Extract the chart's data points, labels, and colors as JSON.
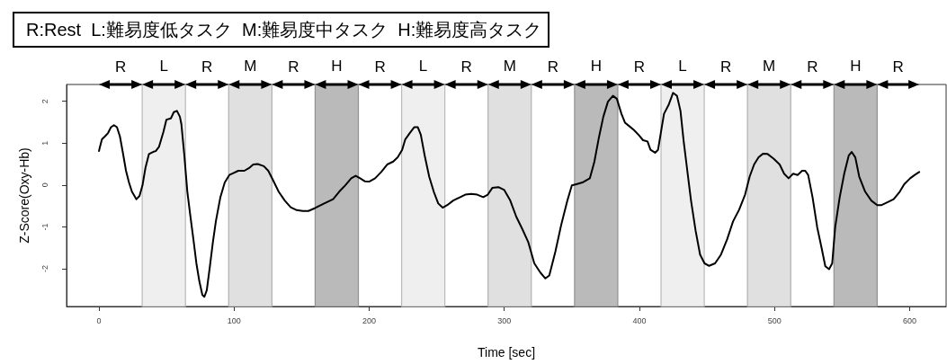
{
  "chart_data": {
    "type": "line",
    "annotations": [
      "R:Rest  L:難易度低タスク  M:難易度中タスク  H:難易度高タスク",
      "R",
      "R",
      "R",
      "R",
      "R",
      "R",
      "R",
      "R",
      "R",
      "R"
    ],
    "xlabel": "Time [sec]",
    "ylabel": "Z-Score(Oxy-Hb)",
    "xlim": [
      -24,
      627
    ],
    "xticks": [
      0,
      100,
      200,
      300,
      400,
      500,
      600
    ],
    "ylim": [
      -2.9,
      2.4
    ],
    "yticks": [
      -2,
      -1,
      0,
      1,
      2
    ],
    "marker": "none",
    "line_style": "solid",
    "x": [
      0,
      0.5,
      2.2,
      4.4,
      6.7,
      8.9,
      11.1,
      13.3,
      15.5,
      17.7,
      20,
      22.2,
      24.4,
      27.7,
      30,
      32.2,
      34.4,
      37,
      40,
      42,
      44.4,
      47.7,
      49.9,
      53.2,
      55.4,
      57.7,
      59.9,
      61,
      63.2,
      65.4,
      67.6,
      69.9,
      72.1,
      74.3,
      76.5,
      78,
      79.8,
      82.1,
      84.3,
      86.5,
      89.8,
      93.1,
      96.5,
      99.8,
      103.1,
      107.6,
      110.9,
      114.2,
      117.5,
      122,
      125.3,
      128.6,
      133,
      137.5,
      141.9,
      146.4,
      150.8,
      155,
      160,
      166.7,
      173.3,
      177.8,
      182.2,
      186.7,
      190,
      193.3,
      196.7,
      200,
      204.4,
      208.9,
      213.3,
      217.8,
      221.1,
      224.4,
      226.7,
      230,
      233.3,
      236,
      238.2,
      241.1,
      244.4,
      247.8,
      251.1,
      254.4,
      257.8,
      262.2,
      266.7,
      271.1,
      275.6,
      280,
      284.4,
      287.8,
      291.1,
      295.6,
      300,
      304.4,
      308.9,
      313.3,
      317.8,
      322.2,
      326.7,
      330.4,
      333.3,
      337.8,
      342.2,
      346.7,
      350,
      353.3,
      357.8,
      363.3,
      366.7,
      370,
      373.3,
      376.7,
      380.4,
      383.3,
      386.7,
      389.3,
      392.7,
      396,
      399.3,
      402.7,
      406,
      408.2,
      411.6,
      413.8,
      416,
      418.2,
      421.6,
      424.9,
      427.8,
      430.4,
      432.7,
      436,
      438.2,
      441.6,
      444.9,
      448.2,
      451.6,
      456,
      460.4,
      464.9,
      469.3,
      473.8,
      478.2,
      481.6,
      484.9,
      488.2,
      491.6,
      494.9,
      499.3,
      503.8,
      507.1,
      510.4,
      513.8,
      517.1,
      520.4,
      522.7,
      524.9,
      528.2,
      531.6,
      534.9,
      537.6,
      540.4,
      542.7,
      544.9,
      548.2,
      551.6,
      554.9,
      557.1,
      559.8,
      562.7,
      567.1,
      571.6,
      576,
      579.3,
      583.8,
      588.2,
      592.7,
      596,
      600.4,
      603.8,
      607.1
    ],
    "series": [
      {
        "color": "#000000",
        "values": [
          0.81,
          0.88,
          1.09,
          1.16,
          1.24,
          1.38,
          1.43,
          1.38,
          1.16,
          0.77,
          0.34,
          0.06,
          -0.16,
          -0.34,
          -0.26,
          -0.01,
          0.41,
          0.74,
          0.79,
          0.81,
          0.91,
          1.27,
          1.56,
          1.59,
          1.74,
          1.77,
          1.63,
          1.45,
          0.7,
          -0.16,
          -0.73,
          -1.3,
          -1.87,
          -2.3,
          -2.62,
          -2.67,
          -2.51,
          -1.94,
          -1.37,
          -0.87,
          -0.3,
          0.06,
          0.24,
          0.29,
          0.34,
          0.34,
          0.4,
          0.49,
          0.5,
          0.45,
          0.34,
          0.13,
          -0.16,
          -0.37,
          -0.53,
          -0.6,
          -0.62,
          -0.62,
          -0.55,
          -0.44,
          -0.34,
          -0.16,
          -0.01,
          0.16,
          0.22,
          0.16,
          0.09,
          0.08,
          0.16,
          0.31,
          0.49,
          0.56,
          0.66,
          0.84,
          1.09,
          1.24,
          1.38,
          1.38,
          1.2,
          0.7,
          0.2,
          -0.16,
          -0.44,
          -0.54,
          -0.48,
          -0.37,
          -0.3,
          -0.23,
          -0.21,
          -0.23,
          -0.29,
          -0.23,
          -0.07,
          -0.05,
          -0.12,
          -0.37,
          -0.76,
          -1.05,
          -1.37,
          -1.87,
          -2.09,
          -2.23,
          -2.16,
          -1.59,
          -0.94,
          -0.37,
          -0.01,
          0.02,
          0.06,
          0.16,
          0.56,
          1.13,
          1.63,
          1.99,
          2.13,
          2.06,
          1.7,
          1.49,
          1.4,
          1.31,
          1.2,
          1.07,
          1.04,
          0.84,
          0.77,
          0.84,
          1.27,
          1.7,
          1.91,
          2.2,
          2.13,
          1.77,
          1.06,
          0.2,
          -0.37,
          -1.09,
          -1.66,
          -1.87,
          -1.93,
          -1.87,
          -1.66,
          -1.3,
          -0.87,
          -0.59,
          -0.23,
          0.2,
          0.49,
          0.66,
          0.75,
          0.74,
          0.63,
          0.49,
          0.27,
          0.16,
          0.27,
          0.24,
          0.34,
          0.34,
          0.24,
          -0.3,
          -1.01,
          -1.51,
          -1.94,
          -2.01,
          -1.87,
          -1.01,
          -0.3,
          0.27,
          0.7,
          0.79,
          0.66,
          0.2,
          -0.16,
          -0.37,
          -0.48,
          -0.48,
          -0.41,
          -0.34,
          -0.16,
          0.02,
          0.16,
          0.24,
          0.31
        ]
      }
    ],
    "bands": [
      {
        "axis": "x",
        "from": 32,
        "to": 64,
        "label": "L",
        "color": "#efefef"
      },
      {
        "axis": "x",
        "from": 96,
        "to": 128,
        "label": "M",
        "color": "#e0e0e0"
      },
      {
        "axis": "x",
        "from": 160,
        "to": 192,
        "label": "H",
        "color": "#bababa"
      },
      {
        "axis": "x",
        "from": 224,
        "to": 256,
        "label": "L",
        "color": "#efefef"
      },
      {
        "axis": "x",
        "from": 288,
        "to": 320,
        "label": "M",
        "color": "#e0e0e0"
      },
      {
        "axis": "x",
        "from": 352,
        "to": 384,
        "label": "H",
        "color": "#bababa"
      },
      {
        "axis": "x",
        "from": 416,
        "to": 448,
        "label": "L",
        "color": "#efefef"
      },
      {
        "axis": "x",
        "from": 480,
        "to": 512,
        "label": "M",
        "color": "#e0e0e0"
      },
      {
        "axis": "x",
        "from": 544,
        "to": 576,
        "label": "H",
        "color": "#bababa"
      }
    ]
  }
}
